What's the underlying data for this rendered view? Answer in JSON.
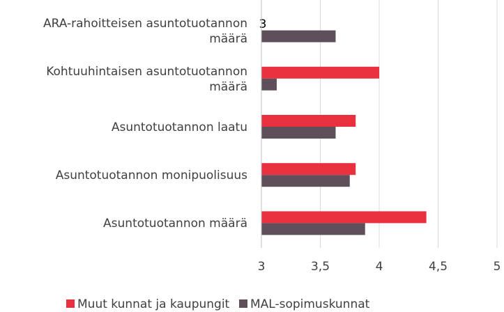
{
  "chart_data": {
    "type": "bar",
    "orientation": "horizontal",
    "categories": [
      "ARA-rahoitteisen asuntotuotannon määrä",
      "Kohtuuhintaisen asuntotuotannon määrä",
      "Asuntotuotannon laatu",
      "Asuntotuotannon monipuolisuus",
      "Asuntotuotannon määrä"
    ],
    "series": [
      {
        "name": "Muut kunnat ja kaupungit",
        "color": "#e8303f",
        "values": [
          3,
          4.0,
          3.8,
          3.8,
          4.4
        ],
        "value_labels": [
          "3",
          null,
          null,
          null,
          null
        ]
      },
      {
        "name": "MAL-sopimuskunnat",
        "color": "#5e4f5b",
        "values": [
          3.63,
          3.13,
          3.63,
          3.75,
          3.88
        ]
      }
    ],
    "xlim": [
      3,
      5
    ],
    "xticks": [
      3,
      {
        "value": 3.5,
        "label": "3,5"
      },
      4,
      {
        "value": 4.5,
        "label": "4,5"
      },
      5
    ],
    "grid": true,
    "legend": "bottom"
  }
}
